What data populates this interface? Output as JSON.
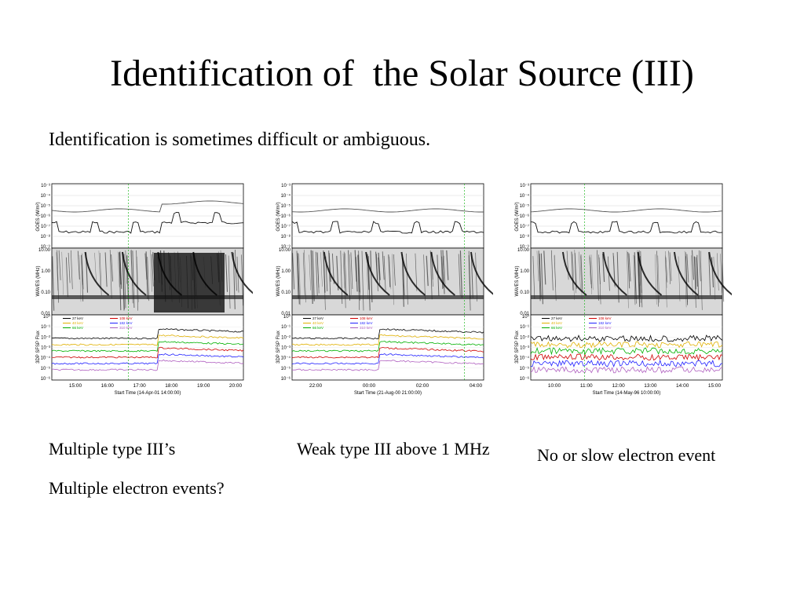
{
  "slide": {
    "title": "Identification of  the Solar Source (III)",
    "subtitle": "Identification is sometimes difficult or ambiguous."
  },
  "captions": {
    "panel1": [
      "Multiple type III’s",
      "Multiple electron events?"
    ],
    "panel2": [
      "Weak type III above 1 MHz"
    ],
    "panel3": [
      "No or slow electron event"
    ]
  },
  "colors": {
    "27 keV": "#000000",
    "40 keV": "#e0b000",
    "66 keV": "#00b000",
    "108 keV": "#d00000",
    "182 keV": "#2020ff",
    "310 keV": "#b060c0",
    "marker": "#00b000"
  },
  "chart_data": [
    {
      "type": "line",
      "panels": [
        "GOES (W/m²)",
        "WAVES (MHz)",
        "3DP SFSP Flux"
      ],
      "goes_ticks": [
        "10⁻³",
        "10⁻⁴",
        "10⁻⁵",
        "10⁻⁶",
        "10⁻⁷",
        "10⁻⁸",
        "10⁻⁹"
      ],
      "waves_ticks": [
        "10.00",
        "1.00",
        "0.10",
        "0.01"
      ],
      "flux_ticks": [
        "10⁰",
        "10⁻¹",
        "10⁻²",
        "10⁻³",
        "10⁻⁴",
        "10⁻⁵",
        "10⁻⁶"
      ],
      "x_ticks": [
        "15:00",
        "16:00",
        "17:00",
        "18:00",
        "19:00",
        "20:00"
      ],
      "xlabel": "Start Time (14-Apr-01 14:00:00)",
      "legend": [
        "27 keV",
        "40 keV",
        "66 keV",
        "108 keV",
        "182 keV",
        "310 keV"
      ],
      "marker_x": 0.4
    },
    {
      "type": "line",
      "panels": [
        "GOES (W/m²)",
        "WAVES (MHz)",
        "3DP SFSP Flux"
      ],
      "goes_ticks": [
        "10⁻³",
        "10⁻⁴",
        "10⁻⁵",
        "10⁻⁶",
        "10⁻⁷",
        "10⁻⁸",
        "10⁻⁹"
      ],
      "waves_ticks": [
        "10.00",
        "1.00",
        "0.10",
        "0.01"
      ],
      "flux_ticks": [
        "10⁰",
        "10⁻¹",
        "10⁻²",
        "10⁻³",
        "10⁻⁴",
        "10⁻⁵",
        "10⁻⁶"
      ],
      "x_ticks": [
        "22:00",
        "00:00",
        "02:00",
        "04:00"
      ],
      "xlabel": "Start Time (21-Aug-00 21:00:00)",
      "legend": [
        "27 keV",
        "40 keV",
        "66 keV",
        "108 keV",
        "182 keV",
        "310 keV"
      ],
      "marker_x": 0.9
    },
    {
      "type": "line",
      "panels": [
        "GOES (W/m²)",
        "WAVES (MHz)",
        "3DP SFSP Flux"
      ],
      "goes_ticks": [
        "10⁻³",
        "10⁻⁴",
        "10⁻⁵",
        "10⁻⁶",
        "10⁻⁷",
        "10⁻⁸",
        "10⁻⁹"
      ],
      "waves_ticks": [
        "10.00",
        "1.00",
        "0.10",
        "0.01"
      ],
      "flux_ticks": [
        "10⁰",
        "10⁻¹",
        "10⁻²",
        "10⁻³",
        "10⁻⁴",
        "10⁻⁵",
        "10⁻⁶"
      ],
      "x_ticks": [
        "10:00",
        "11:00",
        "12:00",
        "13:00",
        "14:00",
        "15:00"
      ],
      "xlabel": "Start Time (14-May-96 10:00:00)",
      "legend": [
        "27 keV",
        "40 keV",
        "66 keV",
        "108 keV",
        "182 keV",
        "310 keV"
      ],
      "marker_x": 0.28
    }
  ]
}
